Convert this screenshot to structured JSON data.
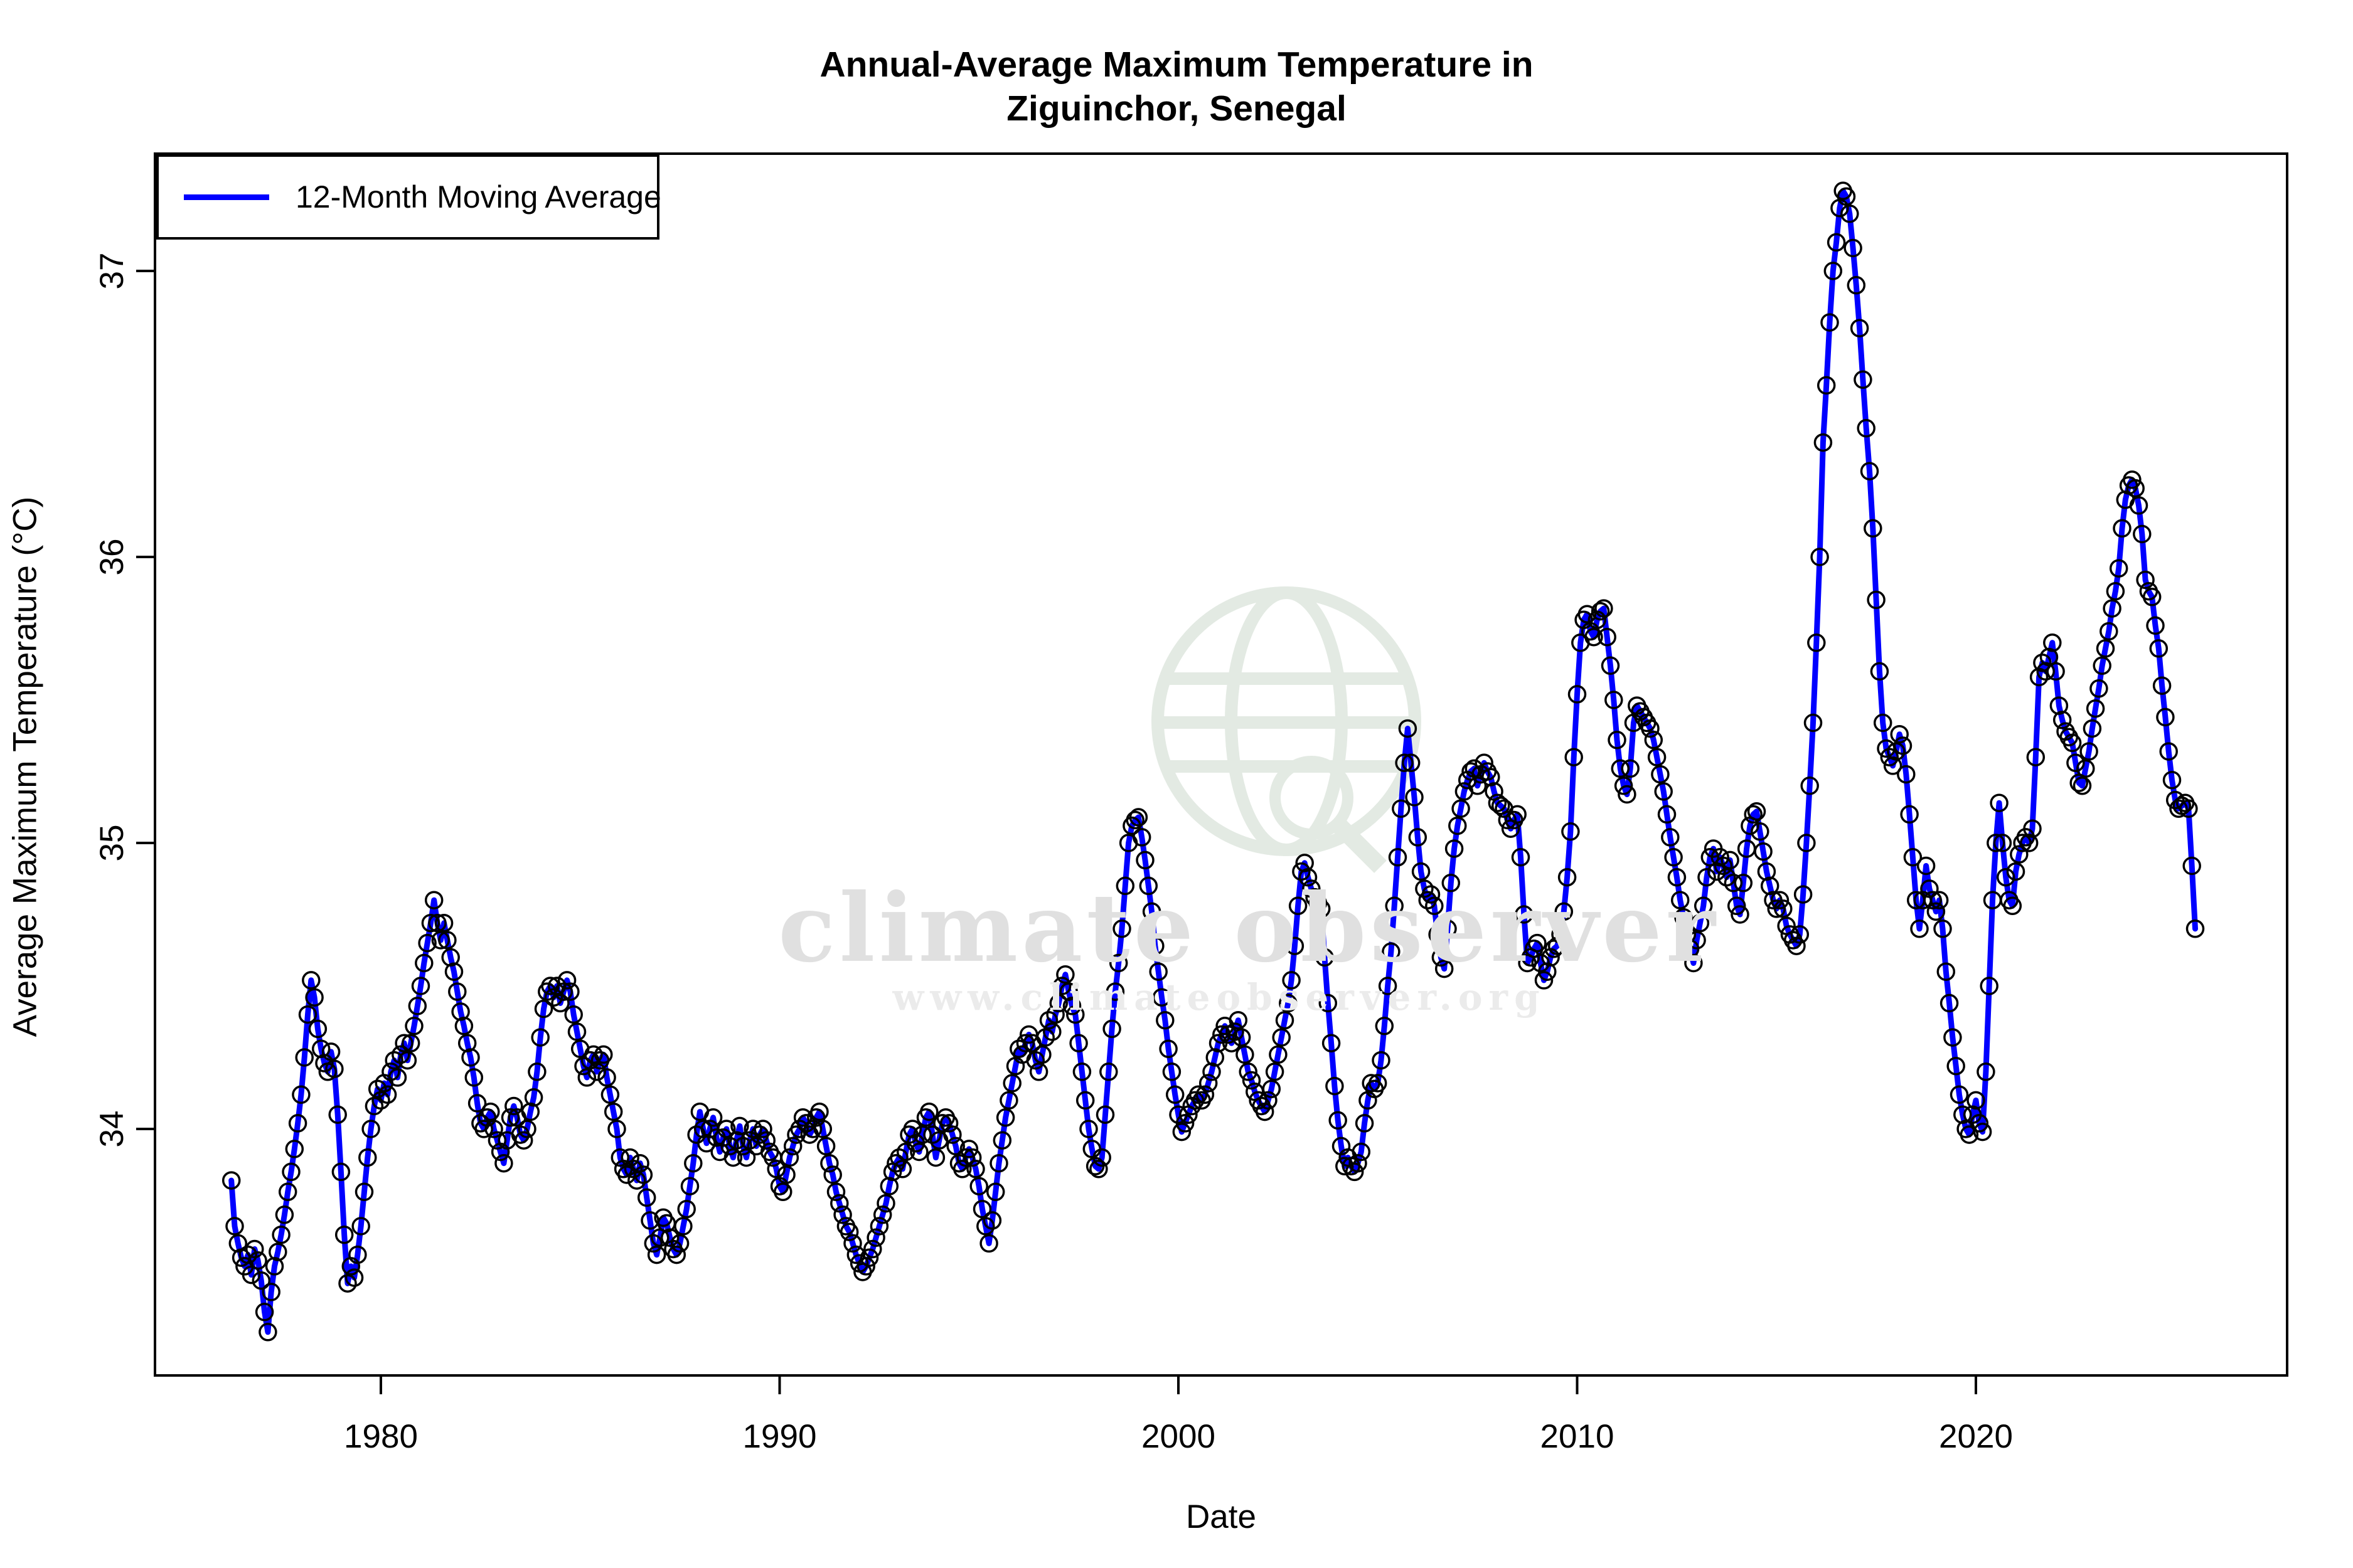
{
  "title": {
    "line1": "Annual-Average Maximum Temperature in",
    "line2": "Ziguinchor, Senegal"
  },
  "legend": {
    "label": "12-Month Moving Average"
  },
  "axes": {
    "x_label": "Date",
    "y_label": "Average Maximum Temperature (°C)",
    "x_ticks": [
      "1980",
      "1990",
      "2000",
      "2010",
      "2020"
    ],
    "y_ticks": [
      "34",
      "35",
      "36",
      "37"
    ]
  },
  "watermark": {
    "text": "climate observer",
    "url": "www.climateobserver.org",
    "globe_icon": "globe-with-magnifier-icon"
  },
  "colors": {
    "line": "#0000ff",
    "marker_edge": "#000000",
    "axis": "#000000",
    "watermark_icon": "#e3eae3",
    "watermark_text": "#e0e0e0"
  },
  "chart_data": {
    "type": "line",
    "title": "Annual-Average Maximum Temperature in Ziguinchor, Senegal",
    "xlabel": "Date",
    "ylabel": "Average Maximum Temperature (°C)",
    "series_name": "12-Month Moving Average",
    "legend_position": "top-left",
    "grid": false,
    "marker": "open-circle",
    "xlim": [
      1974.3,
      2027.8
    ],
    "ylim": [
      33.14,
      37.41
    ],
    "x_tick_values": [
      1980,
      1990,
      2000,
      2010,
      2020
    ],
    "y_tick_values": [
      34,
      35,
      36,
      37
    ],
    "x_start": 1976.25,
    "x_step_years": 0.0833333,
    "values": [
      33.82,
      33.66,
      33.6,
      33.55,
      33.52,
      33.56,
      33.49,
      33.58,
      33.54,
      33.47,
      33.36,
      33.29,
      33.43,
      33.52,
      33.57,
      33.63,
      33.7,
      33.78,
      33.85,
      33.93,
      34.02,
      34.12,
      34.25,
      34.4,
      34.52,
      34.46,
      34.35,
      34.28,
      34.23,
      34.2,
      34.27,
      34.21,
      34.05,
      33.85,
      33.63,
      33.46,
      33.52,
      33.48,
      33.56,
      33.66,
      33.78,
      33.9,
      34.0,
      34.08,
      34.14,
      34.1,
      34.16,
      34.12,
      34.2,
      34.24,
      34.18,
      34.26,
      34.3,
      34.24,
      34.3,
      34.36,
      34.43,
      34.5,
      34.58,
      34.65,
      34.72,
      34.8,
      34.72,
      34.66,
      34.72,
      34.66,
      34.6,
      34.55,
      34.48,
      34.41,
      34.36,
      34.3,
      34.25,
      34.18,
      34.09,
      34.02,
      34.0,
      34.04,
      34.06,
      34.0,
      33.96,
      33.92,
      33.88,
      33.96,
      34.04,
      34.08,
      34.04,
      33.98,
      33.96,
      34.0,
      34.06,
      34.11,
      34.2,
      34.32,
      34.42,
      34.48,
      34.5,
      34.46,
      34.5,
      34.44,
      34.48,
      34.52,
      34.48,
      34.4,
      34.34,
      34.28,
      34.22,
      34.18,
      34.24,
      34.26,
      34.2,
      34.24,
      34.26,
      34.18,
      34.12,
      34.06,
      34.0,
      33.9,
      33.86,
      33.84,
      33.9,
      33.86,
      33.82,
      33.88,
      33.84,
      33.76,
      33.68,
      33.6,
      33.56,
      33.62,
      33.69,
      33.67,
      33.62,
      33.58,
      33.56,
      33.6,
      33.66,
      33.72,
      33.8,
      33.88,
      33.98,
      34.06,
      34.0,
      33.95,
      34.0,
      34.04,
      33.97,
      33.92,
      33.97,
      34.0,
      33.94,
      33.9,
      33.96,
      34.01,
      33.94,
      33.9,
      33.96,
      34.0,
      33.94,
      33.98,
      34.0,
      33.96,
      33.92,
      33.9,
      33.86,
      33.8,
      33.78,
      33.84,
      33.9,
      33.94,
      33.98,
      34.0,
      34.04,
      34.02,
      33.98,
      34.0,
      34.04,
      34.06,
      34.0,
      33.94,
      33.88,
      33.84,
      33.78,
      33.74,
      33.7,
      33.66,
      33.64,
      33.6,
      33.56,
      33.53,
      33.5,
      33.52,
      33.55,
      33.58,
      33.62,
      33.66,
      33.7,
      33.74,
      33.8,
      33.85,
      33.88,
      33.9,
      33.86,
      33.92,
      33.98,
      34.0,
      33.95,
      33.92,
      33.98,
      34.04,
      34.06,
      33.98,
      33.9,
      33.96,
      34.02,
      34.04,
      34.02,
      33.98,
      33.94,
      33.88,
      33.86,
      33.9,
      33.93,
      33.9,
      33.86,
      33.8,
      33.72,
      33.66,
      33.6,
      33.68,
      33.78,
      33.88,
      33.96,
      34.04,
      34.1,
      34.16,
      34.22,
      34.28,
      34.26,
      34.3,
      34.33,
      34.3,
      34.24,
      34.2,
      34.26,
      34.32,
      34.38,
      34.34,
      34.4,
      34.44,
      34.5,
      34.54,
      34.48,
      34.43,
      34.4,
      34.3,
      34.2,
      34.1,
      34.0,
      33.93,
      33.87,
      33.86,
      33.9,
      34.05,
      34.2,
      34.35,
      34.48,
      34.58,
      34.7,
      34.85,
      35.0,
      35.06,
      35.08,
      35.09,
      35.02,
      34.94,
      34.85,
      34.76,
      34.64,
      34.55,
      34.46,
      34.38,
      34.28,
      34.2,
      34.12,
      34.05,
      33.99,
      34.02,
      34.05,
      34.08,
      34.1,
      34.12,
      34.1,
      34.12,
      34.16,
      34.2,
      34.25,
      34.3,
      34.33,
      34.36,
      34.33,
      34.3,
      34.34,
      34.38,
      34.32,
      34.26,
      34.2,
      34.17,
      34.13,
      34.1,
      34.08,
      34.06,
      34.1,
      34.14,
      34.2,
      34.26,
      34.32,
      34.38,
      34.44,
      34.52,
      34.64,
      34.78,
      34.9,
      34.93,
      34.88,
      34.84,
      34.81,
      34.79,
      34.77,
      34.6,
      34.44,
      34.3,
      34.15,
      34.03,
      33.94,
      33.87,
      33.9,
      33.87,
      33.85,
      33.88,
      33.92,
      34.02,
      34.1,
      34.16,
      34.14,
      34.16,
      34.24,
      34.36,
      34.5,
      34.62,
      34.78,
      34.95,
      35.12,
      35.28,
      35.4,
      35.28,
      35.16,
      35.02,
      34.9,
      34.84,
      34.8,
      34.82,
      34.78,
      34.68,
      34.6,
      34.56,
      34.7,
      34.86,
      34.98,
      35.06,
      35.12,
      35.18,
      35.22,
      35.25,
      35.26,
      35.2,
      35.24,
      35.28,
      35.25,
      35.23,
      35.18,
      35.14,
      35.13,
      35.12,
      35.08,
      35.05,
      35.08,
      35.1,
      34.95,
      34.75,
      34.58,
      34.6,
      34.63,
      34.65,
      34.58,
      34.52,
      34.55,
      34.6,
      34.63,
      34.64,
      34.68,
      34.76,
      34.88,
      35.04,
      35.3,
      35.52,
      35.7,
      35.78,
      35.8,
      35.74,
      35.72,
      35.78,
      35.81,
      35.82,
      35.72,
      35.62,
      35.5,
      35.36,
      35.26,
      35.2,
      35.17,
      35.26,
      35.42,
      35.48,
      35.46,
      35.44,
      35.42,
      35.4,
      35.36,
      35.3,
      35.24,
      35.18,
      35.1,
      35.02,
      34.95,
      34.88,
      34.8,
      34.74,
      34.68,
      34.63,
      34.58,
      34.66,
      34.72,
      34.78,
      34.88,
      34.95,
      34.98,
      34.9,
      34.95,
      34.92,
      34.88,
      34.94,
      34.86,
      34.78,
      34.75,
      34.86,
      34.98,
      35.06,
      35.1,
      35.11,
      35.04,
      34.97,
      34.9,
      34.85,
      34.8,
      34.77,
      34.8,
      34.77,
      34.71,
      34.68,
      34.66,
      34.64,
      34.68,
      34.82,
      35.0,
      35.2,
      35.42,
      35.7,
      36.0,
      36.4,
      36.6,
      36.82,
      37.0,
      37.1,
      37.22,
      37.28,
      37.26,
      37.2,
      37.08,
      36.95,
      36.8,
      36.62,
      36.45,
      36.3,
      36.1,
      35.85,
      35.6,
      35.42,
      35.33,
      35.3,
      35.27,
      35.32,
      35.38,
      35.34,
      35.24,
      35.1,
      34.95,
      34.8,
      34.7,
      34.8,
      34.92,
      34.84,
      34.8,
      34.76,
      34.8,
      34.7,
      34.55,
      34.44,
      34.32,
      34.22,
      34.12,
      34.05,
      34.0,
      33.98,
      34.05,
      34.1,
      34.02,
      33.99,
      34.2,
      34.5,
      34.8,
      35.0,
      35.14,
      35.0,
      34.88,
      34.8,
      34.78,
      34.9,
      34.96,
      35.0,
      35.02,
      35.0,
      35.05,
      35.3,
      35.58,
      35.63,
      35.6,
      35.65,
      35.7,
      35.6,
      35.48,
      35.43,
      35.39,
      35.37,
      35.35,
      35.28,
      35.21,
      35.2,
      35.26,
      35.32,
      35.4,
      35.47,
      35.54,
      35.62,
      35.68,
      35.74,
      35.82,
      35.88,
      35.96,
      36.1,
      36.2,
      36.25,
      36.27,
      36.24,
      36.18,
      36.08,
      35.92,
      35.88,
      35.86,
      35.76,
      35.68,
      35.55,
      35.44,
      35.32,
      35.22,
      35.15,
      35.12,
      35.13,
      35.14,
      35.12,
      34.92,
      34.7
    ]
  }
}
